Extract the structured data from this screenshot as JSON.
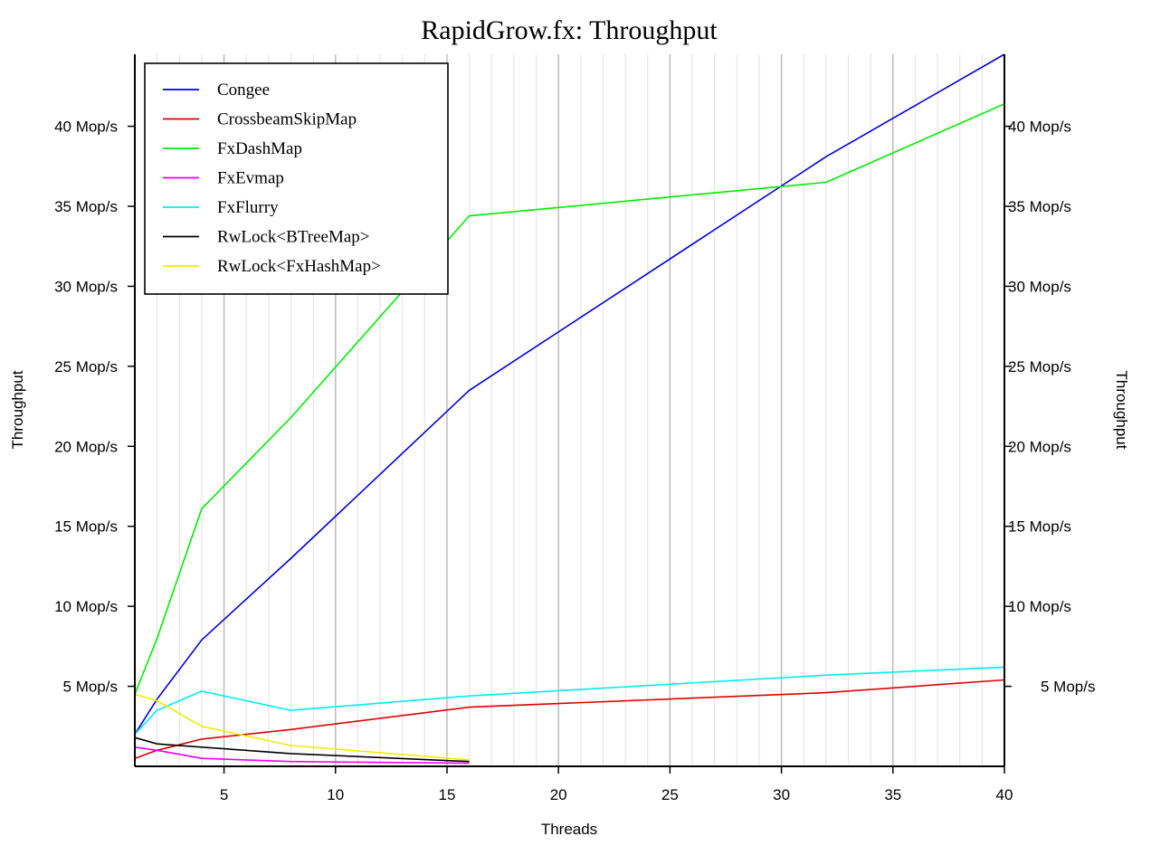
{
  "chart_data": {
    "type": "line",
    "title": "RapidGrow.fx: Throughput",
    "xlabel": "Threads",
    "ylabel": "Throughput",
    "ylabel_right": "Throughput",
    "xlim": [
      1,
      40
    ],
    "ylim": [
      0,
      44.5
    ],
    "x_ticks": [
      5,
      10,
      15,
      20,
      25,
      30,
      35,
      40
    ],
    "y_ticks": [
      5,
      10,
      15,
      20,
      25,
      30,
      35,
      40
    ],
    "y_tick_labels": [
      "5 Mop/s",
      "10 Mop/s",
      "15 Mop/s",
      "20 Mop/s",
      "25 Mop/s",
      "30 Mop/s",
      "35 Mop/s",
      "40 Mop/s"
    ],
    "grid": "vertical",
    "legend_position": "top-left",
    "series": [
      {
        "name": "Congee",
        "color": "#0000e0",
        "x": [
          1,
          2,
          4,
          8,
          16,
          32,
          40
        ],
        "values": [
          2.0,
          4.2,
          7.9,
          13.0,
          23.5,
          38.1,
          44.5
        ]
      },
      {
        "name": "CrossbeamSkipMap",
        "color": "#e00000",
        "x": [
          1,
          2,
          4,
          8,
          16,
          32,
          40
        ],
        "values": [
          0.5,
          1.0,
          1.7,
          2.3,
          3.7,
          4.6,
          5.4
        ]
      },
      {
        "name": "FxDashMap",
        "color": "#00ee00",
        "x": [
          1,
          2,
          4,
          8,
          16,
          32,
          40
        ],
        "values": [
          4.5,
          8.0,
          16.1,
          21.8,
          34.4,
          36.5,
          41.4
        ]
      },
      {
        "name": "FxEvmap",
        "color": "#ee00ee",
        "x": [
          1,
          2,
          4,
          8,
          16
        ],
        "values": [
          1.2,
          1.0,
          0.5,
          0.3,
          0.2
        ]
      },
      {
        "name": "FxFlurry",
        "color": "#00eeee",
        "x": [
          1,
          2,
          4,
          8,
          16,
          32,
          40
        ],
        "values": [
          2.0,
          3.5,
          4.7,
          3.5,
          4.4,
          5.7,
          6.2
        ]
      },
      {
        "name": "RwLock<BTreeMap>",
        "color": "#000000",
        "x": [
          1,
          2,
          4,
          8,
          16
        ],
        "values": [
          1.8,
          1.4,
          1.2,
          0.8,
          0.3
        ]
      },
      {
        "name": "RwLock<FxHashMap>",
        "color": "#eeee00",
        "x": [
          1,
          2,
          4,
          8,
          16
        ],
        "values": [
          4.5,
          4.1,
          2.5,
          1.3,
          0.4
        ]
      }
    ]
  }
}
